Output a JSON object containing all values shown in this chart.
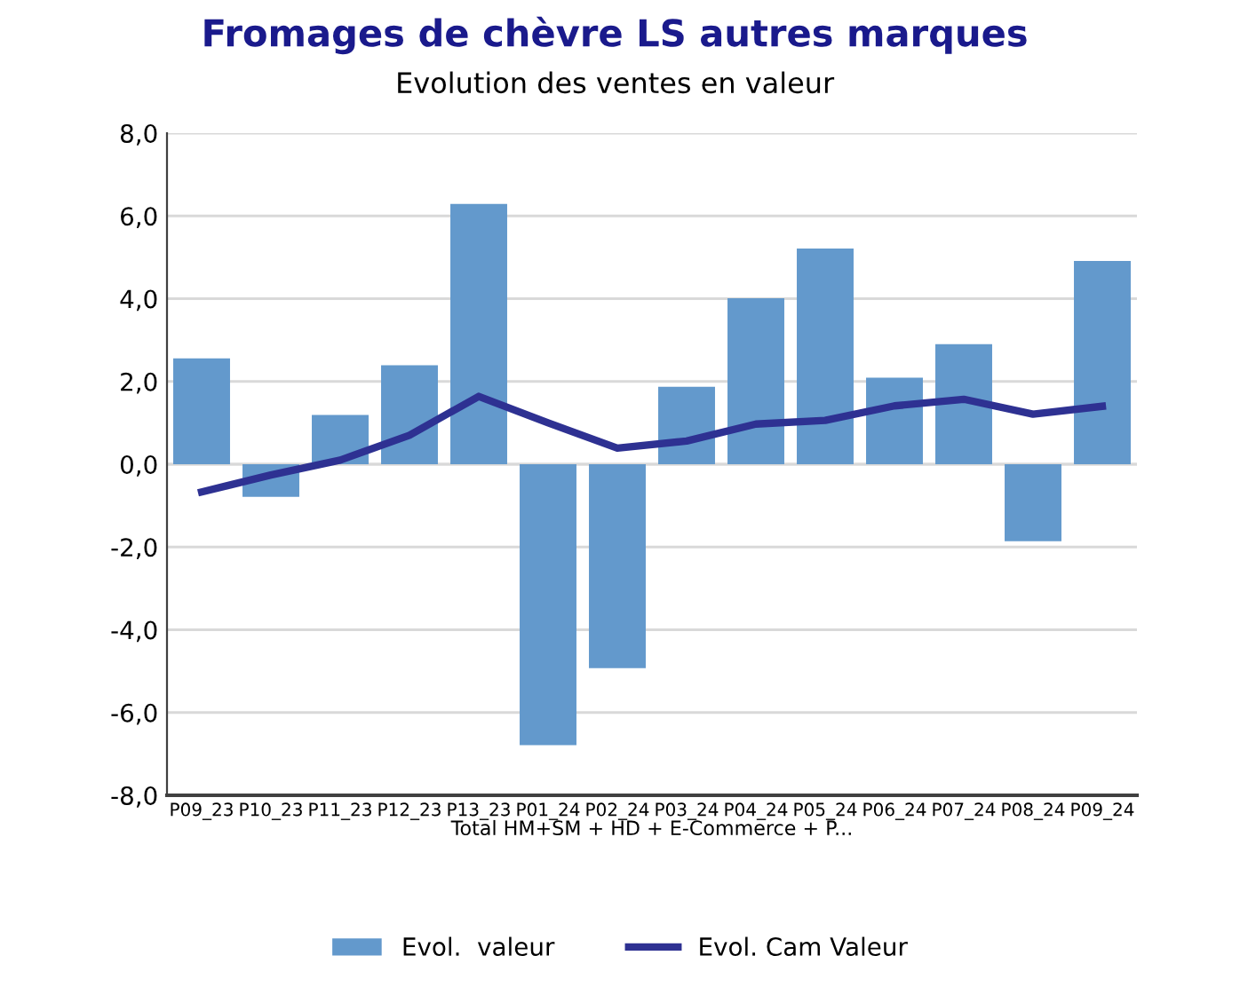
{
  "chart_data": {
    "type": "bar",
    "title": "Fromages de chèvre LS autres marques",
    "subtitle": "Evolution des ventes en valeur",
    "xlabel": "Total HM+SM + HD + E-Commerce + P...",
    "categories": [
      "P09_23",
      "P10_23",
      "P11_23",
      "P12_23",
      "P13_23",
      "P01_24",
      "P02_24",
      "P03_24",
      "P04_24",
      "P05_24",
      "P06_24",
      "P07_24",
      "P08_24",
      "P09_24"
    ],
    "series": [
      {
        "name": "Evol.  valeur",
        "color": "#6399cc",
        "values": [
          2.56,
          -0.79,
          1.19,
          2.39,
          6.29,
          -6.79,
          -4.93,
          1.87,
          4.01,
          5.21,
          2.09,
          2.9,
          -1.86,
          4.91
        ]
      },
      {
        "name": "Evol. Cam Valeur",
        "type": "line",
        "color": "#2e3192",
        "values": [
          -0.67,
          -0.26,
          0.1,
          0.7,
          1.64,
          1.0,
          0.39,
          0.56,
          0.97,
          1.06,
          1.41,
          1.57,
          1.21,
          1.4
        ]
      }
    ],
    "ylim": [
      -8,
      8
    ],
    "yticks": [
      {
        "value": -8,
        "label": "-8,0"
      },
      {
        "value": -6,
        "label": "-6,0"
      },
      {
        "value": -4,
        "label": "-4,0"
      },
      {
        "value": -2,
        "label": "-2,0"
      },
      {
        "value": 0,
        "label": "0,0"
      },
      {
        "value": 2,
        "label": "2,0"
      },
      {
        "value": 4,
        "label": "4,0"
      },
      {
        "value": 6,
        "label": "6,0"
      },
      {
        "value": 8,
        "label": "8,0"
      }
    ],
    "grid": "y",
    "legend": "bottom",
    "marker": "none",
    "line_style": "solid"
  }
}
